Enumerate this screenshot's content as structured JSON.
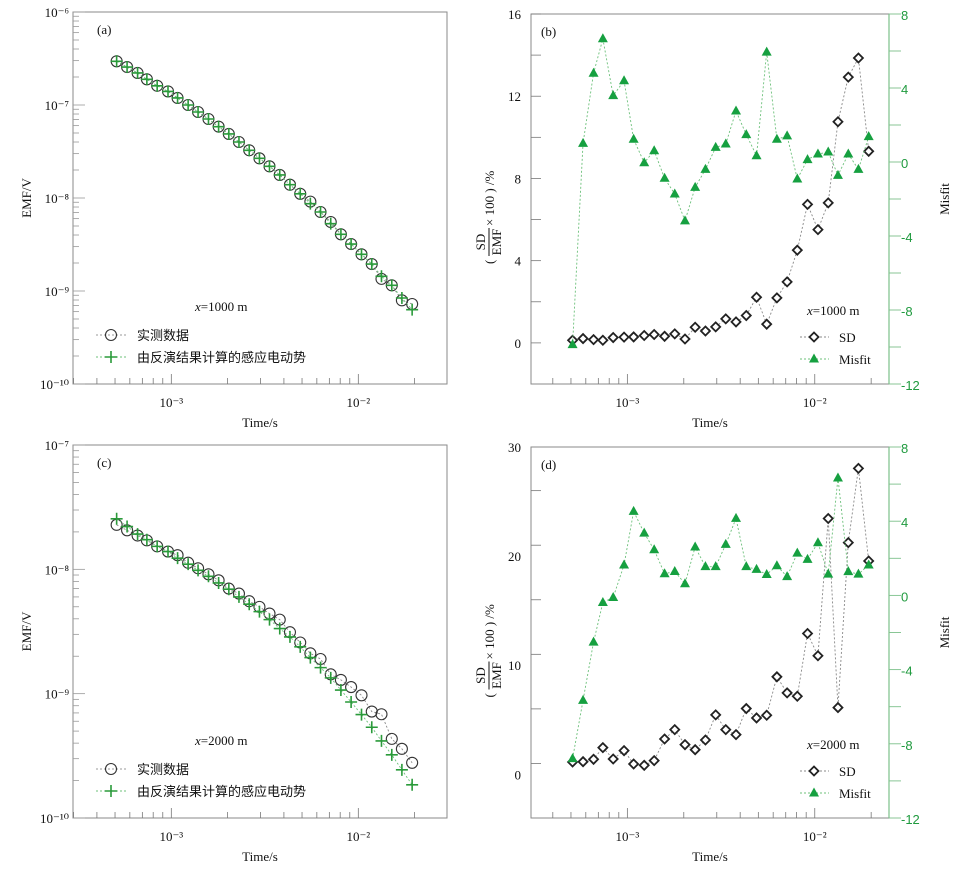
{
  "chart_data": [
    {
      "id": "a",
      "type": "scatter",
      "panel_label": "(a)",
      "xlabel": "Time/s",
      "ylabel": "EMF/V",
      "xscale": "log",
      "yscale": "log",
      "xlim": [
        0.000298,
        0.0298
      ],
      "ylim": [
        1e-10,
        1e-06
      ],
      "x_tick_labels": [
        {
          "value": 0.001,
          "label": "10⁻³"
        },
        {
          "value": 0.01,
          "label": "10⁻²"
        }
      ],
      "y_tick_labels": [
        {
          "value": 1e-06,
          "label": "10⁻⁶"
        },
        {
          "value": 1e-07,
          "label": "10⁻⁷"
        },
        {
          "value": 1e-08,
          "label": "10⁻⁸"
        },
        {
          "value": 1e-09,
          "label": "10⁻⁹"
        },
        {
          "value": 1e-10,
          "label": "10⁻¹⁰"
        }
      ],
      "annotation": {
        "var": "x",
        "text": "=1000 m"
      },
      "legend_position": "bottom-left",
      "x": [
        0.00051,
        0.00058,
        0.00066,
        0.00074,
        0.00084,
        0.00096,
        0.00108,
        0.00123,
        0.00139,
        0.00158,
        0.00179,
        0.00203,
        0.0023,
        0.00261,
        0.00296,
        0.00335,
        0.0038,
        0.00431,
        0.00489,
        0.00554,
        0.00628,
        0.00712,
        0.00807,
        0.00915,
        0.0104,
        0.0118,
        0.0133,
        0.0151,
        0.0171,
        0.0194
      ],
      "series": [
        {
          "name": "实测数据",
          "marker": "circle",
          "color": "#333333",
          "values": [
            2.95e-07,
            2.56e-07,
            2.21e-07,
            1.89e-07,
            1.61e-07,
            1.4e-07,
            1.19e-07,
            1e-07,
            8.41e-08,
            7.07e-08,
            5.85e-08,
            4.88e-08,
            4e-08,
            3.26e-08,
            2.67e-08,
            2.19e-08,
            1.77e-08,
            1.39e-08,
            1.11e-08,
            9.14e-09,
            7.07e-09,
            5.52e-09,
            4.07e-09,
            3.2e-09,
            2.48e-09,
            1.95e-09,
            1.35e-09,
            1.15e-09,
            7.94e-10,
            7.25e-10
          ]
        },
        {
          "name": "由反演结果计算的感应电动势",
          "marker": "plus",
          "color": "#2a9a3a",
          "values": [
            2.95e-07,
            2.56e-07,
            2.21e-07,
            1.89e-07,
            1.61e-07,
            1.4e-07,
            1.19e-07,
            1e-07,
            8.41e-08,
            7.07e-08,
            5.85e-08,
            4.88e-08,
            4e-08,
            3.26e-08,
            2.67e-08,
            2.19e-08,
            1.77e-08,
            1.39e-08,
            1.11e-08,
            8.69e-09,
            7.07e-09,
            5.3e-09,
            4.07e-09,
            3.2e-09,
            2.48e-09,
            1.95e-09,
            1.44e-09,
            1.15e-09,
            8.41e-10,
            6.3e-10
          ]
        }
      ]
    },
    {
      "id": "b",
      "type": "line",
      "panel_label": "(b)",
      "xlabel": "Time/s",
      "ylabel": {
        "prefix": "(",
        "numerator": "SD",
        "denominator": "EMF",
        "suffix": "× 100 ) /%"
      },
      "y2label": "Misfit",
      "xscale": "log",
      "xlim": [
        0.000306,
        0.0249
      ],
      "ylim": [
        -2,
        16
      ],
      "y2lim": [
        -12,
        8
      ],
      "x_tick_labels": [
        {
          "value": 0.001,
          "label": "10⁻³"
        },
        {
          "value": 0.01,
          "label": "10⁻²"
        }
      ],
      "y_ticks": [
        0,
        4,
        8,
        12,
        16
      ],
      "y_tick_labels": [
        "0",
        "4",
        "8",
        "12",
        "16"
      ],
      "y_minor_step": 2,
      "y2_ticks": [
        -12,
        -8,
        -4,
        0,
        4,
        8
      ],
      "y2_tick_labels": [
        "-12",
        "-8",
        "-4",
        "0",
        "4",
        "8"
      ],
      "annotation": {
        "var": "x",
        "text": "=1000 m"
      },
      "legend_position": "bottom-right",
      "x": [
        0.00051,
        0.00058,
        0.00066,
        0.00074,
        0.00084,
        0.00096,
        0.00108,
        0.00123,
        0.00139,
        0.00158,
        0.00179,
        0.00203,
        0.0023,
        0.00261,
        0.00296,
        0.00335,
        0.0038,
        0.00431,
        0.00489,
        0.00554,
        0.00628,
        0.00712,
        0.00807,
        0.00915,
        0.0104,
        0.0118,
        0.0133,
        0.0151,
        0.0171,
        0.0194
      ],
      "series": [
        {
          "name": "SD",
          "axis": "left",
          "marker": "diamond",
          "color": "#222222",
          "values": [
            0.13,
            0.21,
            0.16,
            0.13,
            0.26,
            0.28,
            0.29,
            0.36,
            0.41,
            0.32,
            0.44,
            0.19,
            0.76,
            0.58,
            0.78,
            1.17,
            1.02,
            1.33,
            2.22,
            0.91,
            2.19,
            2.97,
            4.51,
            6.74,
            5.51,
            6.81,
            10.76,
            12.93,
            13.86,
            9.32
          ]
        },
        {
          "name": "Misfit",
          "axis": "right",
          "marker": "triangle",
          "color": "#16a040",
          "values": [
            -9.87,
            1.01,
            4.8,
            6.66,
            3.59,
            4.39,
            1.23,
            -0.04,
            0.61,
            -0.88,
            -1.73,
            -3.18,
            -1.37,
            -0.4,
            0.79,
            0.97,
            2.76,
            1.48,
            0.34,
            5.94,
            1.23,
            1.41,
            -0.92,
            0.13,
            0.43,
            0.54,
            -0.72,
            0.43,
            -0.4,
            1.37
          ]
        }
      ]
    },
    {
      "id": "c",
      "type": "scatter",
      "panel_label": "(c)",
      "xlabel": "Time/s",
      "ylabel": "EMF/V",
      "xscale": "log",
      "yscale": "log",
      "xlim": [
        0.000298,
        0.0298
      ],
      "ylim": [
        1e-10,
        1e-07
      ],
      "x_tick_labels": [
        {
          "value": 0.001,
          "label": "10⁻³"
        },
        {
          "value": 0.01,
          "label": "10⁻²"
        }
      ],
      "y_tick_labels": [
        {
          "value": 1e-07,
          "label": "10⁻⁷"
        },
        {
          "value": 1e-08,
          "label": "10⁻⁸"
        },
        {
          "value": 1e-09,
          "label": "10⁻⁹"
        },
        {
          "value": 1e-10,
          "label": "10⁻¹⁰"
        }
      ],
      "annotation": {
        "var": "x",
        "text": "=2000 m"
      },
      "legend_position": "bottom-left",
      "x": [
        0.00051,
        0.00058,
        0.00066,
        0.00074,
        0.00084,
        0.00096,
        0.00108,
        0.00123,
        0.00139,
        0.00158,
        0.00179,
        0.00203,
        0.0023,
        0.00261,
        0.00296,
        0.00335,
        0.0038,
        0.00431,
        0.00489,
        0.00554,
        0.00628,
        0.00712,
        0.00807,
        0.00915,
        0.0104,
        0.0118,
        0.0133,
        0.0151,
        0.0171,
        0.0194
      ],
      "series": [
        {
          "name": "实测数据",
          "marker": "circle",
          "color": "#333333",
          "values": [
            2.28e-08,
            2.06e-08,
            1.87e-08,
            1.71e-08,
            1.53e-08,
            1.39e-08,
            1.3e-08,
            1.13e-08,
            1.02e-08,
            9.12e-09,
            8.16e-09,
            7e-09,
            6.38e-09,
            5.54e-09,
            4.99e-09,
            4.41e-09,
            3.94e-09,
            3.12e-09,
            2.58e-09,
            2.11e-09,
            1.9e-09,
            1.43e-09,
            1.29e-09,
            1.13e-09,
            9.7e-10,
            7.18e-10,
            6.83e-10,
            4.33e-10,
            3.6e-10,
            2.78e-10
          ]
        },
        {
          "name": "由反演结果计算的感应电动势",
          "marker": "plus",
          "color": "#2a9a3a",
          "values": [
            2.55e-08,
            2.21e-08,
            1.92e-08,
            1.73e-08,
            1.53e-08,
            1.39e-08,
            1.23e-08,
            1.1e-08,
            9.82e-09,
            8.79e-09,
            7.77e-09,
            6.92e-09,
            6e-09,
            5.24e-09,
            4.57e-09,
            3.94e-09,
            3.34e-09,
            2.86e-09,
            2.38e-09,
            1.95e-09,
            1.62e-09,
            1.34e-09,
            1.07e-09,
            8.57e-10,
            6.79e-10,
            5.37e-10,
            4.17e-10,
            3.22e-10,
            2.44e-10,
            1.85e-10
          ]
        }
      ]
    },
    {
      "id": "d",
      "type": "line",
      "panel_label": "(d)",
      "xlabel": "Time/s",
      "ylabel": {
        "prefix": "(",
        "numerator": "SD",
        "denominator": "EMF",
        "suffix": "× 100 ) /%"
      },
      "y2label": "Misfit",
      "xscale": "log",
      "xlim": [
        0.000306,
        0.0249
      ],
      "ylim": [
        -4,
        30
      ],
      "y2lim": [
        -12,
        8
      ],
      "x_tick_labels": [
        {
          "value": 0.001,
          "label": "10⁻³"
        },
        {
          "value": 0.01,
          "label": "10⁻²"
        }
      ],
      "y_ticks": [
        0,
        10,
        20,
        30
      ],
      "y_tick_labels": [
        "0",
        "10",
        "20",
        "30"
      ],
      "y_minor_step": 5,
      "y2_ticks": [
        -12,
        -8,
        -4,
        0,
        4,
        8
      ],
      "y2_tick_labels": [
        "-12",
        "-8",
        "-4",
        "0",
        "4",
        "8"
      ],
      "annotation": {
        "var": "x",
        "text": "=2000 m"
      },
      "legend_position": "bottom-right",
      "x": [
        0.00051,
        0.00058,
        0.00066,
        0.00074,
        0.00084,
        0.00096,
        0.00108,
        0.00123,
        0.00139,
        0.00158,
        0.00179,
        0.00203,
        0.0023,
        0.00261,
        0.00296,
        0.00335,
        0.0038,
        0.00431,
        0.00489,
        0.00554,
        0.00628,
        0.00712,
        0.00807,
        0.00915,
        0.0104,
        0.0118,
        0.0133,
        0.0151,
        0.0171,
        0.0194
      ],
      "series": [
        {
          "name": "SD",
          "axis": "left",
          "marker": "diamond",
          "color": "#222222",
          "values": [
            1.13,
            1.16,
            1.38,
            2.45,
            1.41,
            2.17,
            0.95,
            0.83,
            1.26,
            3.24,
            4.1,
            2.72,
            2.26,
            3.15,
            5.45,
            4.1,
            3.64,
            6.03,
            5.17,
            5.42,
            8.94,
            7.47,
            7.16,
            12.91,
            10.87,
            23.45,
            6.12,
            21.24,
            28.04,
            19.55
          ]
        },
        {
          "name": "Misfit",
          "axis": "right",
          "marker": "triangle",
          "color": "#16a040",
          "values": [
            -8.8,
            -5.66,
            -2.52,
            -0.38,
            -0.11,
            1.64,
            4.53,
            3.36,
            2.46,
            1.17,
            1.29,
            0.63,
            2.61,
            1.55,
            1.55,
            2.75,
            4.15,
            1.55,
            1.4,
            1.13,
            1.6,
            1.01,
            2.28,
            1.94,
            2.84,
            1.15,
            6.33,
            1.28,
            1.15,
            1.64
          ]
        }
      ]
    }
  ]
}
